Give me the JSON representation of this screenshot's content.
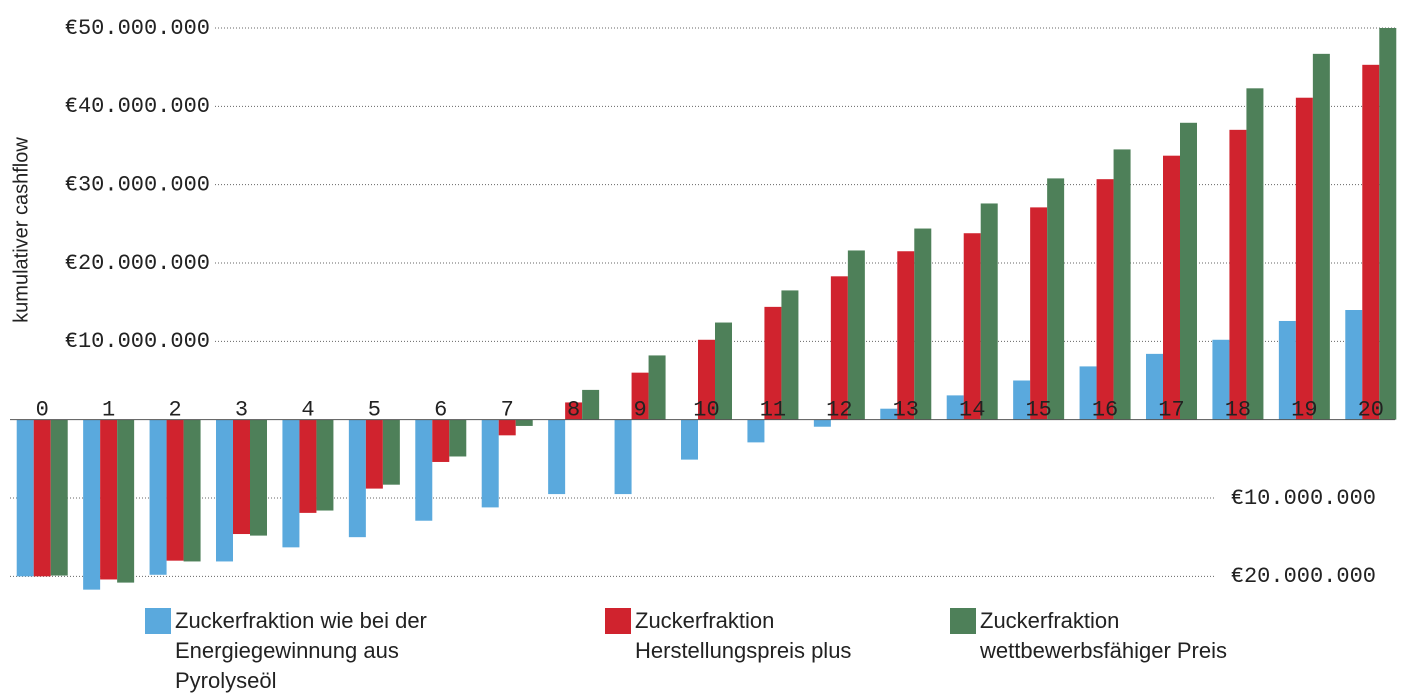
{
  "chart_data": {
    "type": "bar",
    "y_label": "kumulativer cashflow",
    "categories": [
      "0",
      "1",
      "2",
      "3",
      "4",
      "5",
      "6",
      "7",
      "8",
      "9",
      "10",
      "11",
      "12",
      "13",
      "14",
      "15",
      "16",
      "17",
      "18",
      "19",
      "20"
    ],
    "series": [
      {
        "name": "Zuckerfraktion wie bei der Energiegewinnung aus Pyrolyseöl",
        "color": "#5aa9dd",
        "values": [
          -20000000,
          -21700000,
          -19800000,
          -18100000,
          -16300000,
          -15000000,
          -12900000,
          -11200000,
          -9500000,
          -9500000,
          -5100000,
          -2900000,
          -900000,
          1400000,
          3100000,
          5000000,
          6800000,
          8400000,
          10200000,
          12600000,
          14000000
        ]
      },
      {
        "name": "Zuckerfraktion Herstellungspreis plus",
        "color": "#d0232e",
        "values": [
          -20000000,
          -20400000,
          -18000000,
          -14600000,
          -11900000,
          -8800000,
          -5400000,
          -2000000,
          2200000,
          6000000,
          10200000,
          14400000,
          18300000,
          21500000,
          23800000,
          27100000,
          30700000,
          33700000,
          37000000,
          41100000,
          45300000
        ]
      },
      {
        "name": "Zuckerfraktion wettbewerbsfähiger Preis",
        "color": "#4e8059",
        "values": [
          -19900000,
          -20800000,
          -18100000,
          -14800000,
          -11600000,
          -8300000,
          -4700000,
          -800000,
          3800000,
          8200000,
          12400000,
          16500000,
          21600000,
          24400000,
          27600000,
          30800000,
          34500000,
          37900000,
          42300000,
          46700000,
          50000000
        ]
      }
    ],
    "ylim": [
      -22000000,
      50000000
    ],
    "yticks": [
      {
        "value": -20000000,
        "label": "€20.000.000"
      },
      {
        "value": -10000000,
        "label": "€10.000.000"
      },
      {
        "value": 10000000,
        "label": "€10.000.000"
      },
      {
        "value": 20000000,
        "label": "€20.000.000"
      },
      {
        "value": 30000000,
        "label": "€30.000.000"
      },
      {
        "value": 40000000,
        "label": "€40.000.000"
      },
      {
        "value": 50000000,
        "label": "€50.000.000"
      }
    ],
    "grid": true
  }
}
